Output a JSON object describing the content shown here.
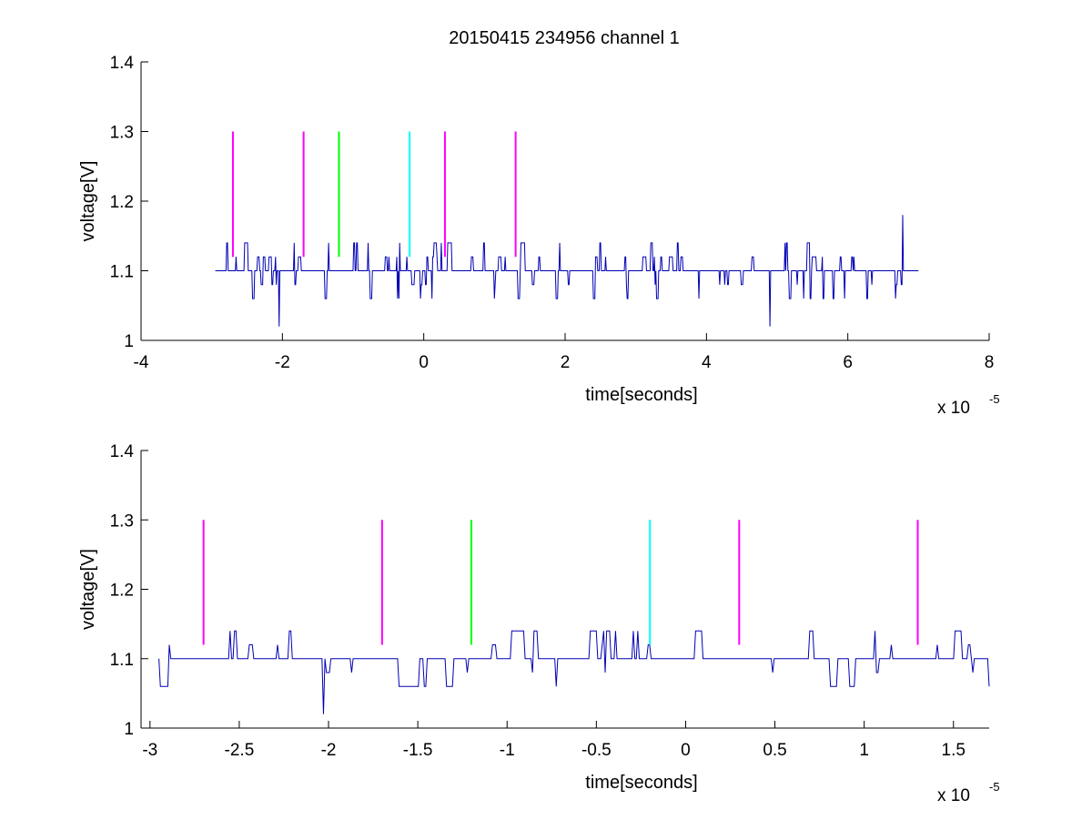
{
  "figure": {
    "title": "20150415 234956 channel 1"
  },
  "colors": {
    "signal": "#0000b4",
    "magenta": "#ff00ff",
    "green": "#00ff00",
    "cyan": "#00ffff",
    "axes": "#000000",
    "background": "#ffffff"
  },
  "chart_data": [
    {
      "type": "line",
      "title": "20150415 234956 channel 1",
      "xlabel": "time[seconds]",
      "ylabel": "voltage[V]",
      "x_multiplier_label": "x 10",
      "x_multiplier_exponent": "-5",
      "xlim": [
        -4,
        8
      ],
      "ylim": [
        1,
        1.4
      ],
      "xticks": [
        -4,
        -2,
        0,
        2,
        4,
        6,
        8
      ],
      "xtick_labels": [
        "-4",
        "-2",
        "0",
        "2",
        "4",
        "6",
        "8"
      ],
      "yticks": [
        1,
        1.1,
        1.2,
        1.3,
        1.4
      ],
      "ytick_labels": [
        "1",
        "1.1",
        "1.2",
        "1.3",
        "1.4"
      ],
      "grid": false,
      "series": [
        {
          "style": "step-noise",
          "color": "#0000b4",
          "x_start": -2.95,
          "x_end": 7.0,
          "baseline": 1.1,
          "levels": [
            1.06,
            1.08,
            1.1,
            1.12,
            1.14
          ],
          "min_points": [
            [
              -2.05,
              1.02
            ],
            [
              4.9,
              1.02
            ]
          ],
          "max_points": [
            [
              6.78,
              1.18
            ]
          ]
        }
      ],
      "markers": [
        {
          "x": -2.7,
          "y0": 1.12,
          "y1": 1.3,
          "color": "#ff00ff"
        },
        {
          "x": -1.7,
          "y0": 1.12,
          "y1": 1.3,
          "color": "#ff00ff"
        },
        {
          "x": -1.2,
          "y0": 1.12,
          "y1": 1.3,
          "color": "#00ff00"
        },
        {
          "x": -0.2,
          "y0": 1.12,
          "y1": 1.3,
          "color": "#00ffff"
        },
        {
          "x": 0.3,
          "y0": 1.12,
          "y1": 1.3,
          "color": "#ff00ff"
        },
        {
          "x": 1.3,
          "y0": 1.12,
          "y1": 1.3,
          "color": "#ff00ff"
        }
      ]
    },
    {
      "type": "line",
      "title": "",
      "xlabel": "time[seconds]",
      "ylabel": "voltage[V]",
      "x_multiplier_label": "x 10",
      "x_multiplier_exponent": "-5",
      "xlim": [
        -3.05,
        1.7
      ],
      "ylim": [
        1,
        1.4
      ],
      "xticks": [
        -3,
        -2.5,
        -2,
        -1.5,
        -1,
        -0.5,
        0,
        0.5,
        1,
        1.5
      ],
      "xtick_labels": [
        "-3",
        "-2.5",
        "-2",
        "-1.5",
        "-1",
        "-0.5",
        "0",
        "0.5",
        "1",
        "1.5"
      ],
      "yticks": [
        1,
        1.1,
        1.2,
        1.3,
        1.4
      ],
      "ytick_labels": [
        "1",
        "1.1",
        "1.2",
        "1.3",
        "1.4"
      ],
      "grid": false,
      "series": [
        {
          "style": "step-noise",
          "color": "#0000b4",
          "x_start": -2.95,
          "x_end": 1.7,
          "baseline": 1.1,
          "levels": [
            1.06,
            1.08,
            1.1,
            1.12,
            1.14
          ],
          "min_points": [
            [
              -2.03,
              1.02
            ]
          ],
          "max_points": []
        }
      ],
      "markers": [
        {
          "x": -2.7,
          "y0": 1.12,
          "y1": 1.3,
          "color": "#ff00ff"
        },
        {
          "x": -1.7,
          "y0": 1.12,
          "y1": 1.3,
          "color": "#ff00ff"
        },
        {
          "x": -1.2,
          "y0": 1.12,
          "y1": 1.3,
          "color": "#00ff00"
        },
        {
          "x": -0.2,
          "y0": 1.12,
          "y1": 1.3,
          "color": "#00ffff"
        },
        {
          "x": 0.3,
          "y0": 1.12,
          "y1": 1.3,
          "color": "#ff00ff"
        },
        {
          "x": 1.3,
          "y0": 1.12,
          "y1": 1.3,
          "color": "#ff00ff"
        }
      ]
    }
  ]
}
